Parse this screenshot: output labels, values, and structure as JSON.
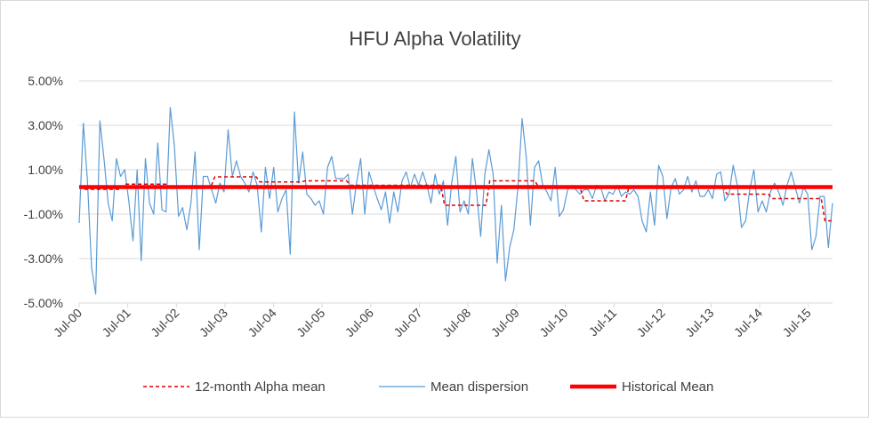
{
  "chart_data": {
    "type": "line",
    "title": "HFU Alpha Volatility",
    "xlabel": "",
    "ylabel": "",
    "ylim": [
      -0.05,
      0.05
    ],
    "y_ticks": [
      -0.05,
      -0.03,
      -0.01,
      0.01,
      0.03,
      0.05
    ],
    "y_tick_labels": [
      "-5.00%",
      "-3.00%",
      "-1.00%",
      "1.00%",
      "3.00%",
      "5.00%"
    ],
    "x_tick_labels": [
      "Jul-00",
      "Jul-01",
      "Jul-02",
      "Jul-03",
      "Jul-04",
      "Jul-05",
      "Jul-06",
      "Jul-07",
      "Jul-08",
      "Jul-09",
      "Jul-10",
      "Jul-11",
      "Jul-12",
      "Jul-13",
      "Jul-14",
      "Jul-15"
    ],
    "x_start": "Jul-00",
    "x_end": "Jan-16",
    "grid": "horizontal",
    "legend_position": "bottom",
    "series": [
      {
        "name": "12-month Alpha mean",
        "style": "dashed",
        "color": "#e00000",
        "values": [
          0.0025,
          0.0012,
          0.0012,
          0.0012,
          0.0012,
          0.0012,
          0.0012,
          0.0012,
          0.0012,
          0.0012,
          0.0012,
          0.0012,
          0.0035,
          0.0035,
          0.0035,
          0.0035,
          0.0035,
          0.0035,
          0.0035,
          0.0035,
          0.0035,
          0.0035,
          0.0035,
          0.0035,
          0.0025,
          0.0025,
          0.0025,
          0.0025,
          0.0025,
          0.0025,
          0.0025,
          0.0025,
          0.0025,
          0.0025,
          0.0025,
          0.0025,
          0.0068,
          0.0068,
          0.0068,
          0.0068,
          0.0068,
          0.0068,
          0.0068,
          0.0068,
          0.0068,
          0.0068,
          0.0068,
          0.0068,
          0.0045,
          0.0045,
          0.0045,
          0.0045,
          0.0045,
          0.0045,
          0.0045,
          0.0045,
          0.0045,
          0.0045,
          0.0045,
          0.0045,
          0.005,
          0.005,
          0.005,
          0.005,
          0.005,
          0.005,
          0.005,
          0.005,
          0.005,
          0.005,
          0.005,
          0.005,
          0.003,
          0.003,
          0.003,
          0.003,
          0.003,
          0.003,
          0.003,
          0.003,
          0.003,
          0.003,
          0.003,
          0.003,
          0.003,
          0.003,
          0.003,
          0.003,
          0.003,
          0.003,
          0.003,
          0.003,
          0.003,
          0.003,
          0.003,
          0.003,
          0.003,
          -0.006,
          -0.006,
          -0.006,
          -0.006,
          -0.006,
          -0.006,
          -0.006,
          -0.006,
          -0.006,
          -0.006,
          -0.006,
          -0.006,
          0.005,
          0.005,
          0.005,
          0.005,
          0.005,
          0.005,
          0.005,
          0.005,
          0.005,
          0.005,
          0.005,
          0.005,
          0.005,
          0.002,
          0.002,
          0.002,
          0.002,
          0.002,
          0.002,
          0.002,
          0.002,
          0.002,
          0.002,
          0.002,
          0.002,
          -0.004,
          -0.004,
          -0.004,
          -0.004,
          -0.004,
          -0.004,
          -0.004,
          -0.004,
          -0.004,
          -0.004,
          -0.004,
          -0.004,
          0.0025,
          0.0025,
          0.0025,
          0.0025,
          0.0025,
          0.0025,
          0.0025,
          0.0025,
          0.0025,
          0.0025,
          0.0025,
          0.0025,
          0.0025,
          0.0025,
          0.0025,
          0.0025,
          0.0025,
          0.0025,
          0.0025,
          0.0025,
          0.0025,
          0.0025,
          0.0025,
          0.0025,
          0.0025,
          0.0025,
          -0.001,
          -0.001,
          -0.001,
          -0.001,
          -0.001,
          -0.001,
          -0.001,
          -0.001,
          -0.001,
          -0.001,
          -0.001,
          -0.001,
          -0.003,
          -0.003,
          -0.003,
          -0.003,
          -0.003,
          -0.003,
          -0.003,
          -0.003,
          -0.003,
          -0.003,
          -0.003,
          -0.003,
          -0.003,
          -0.003,
          -0.013,
          -0.013,
          -0.013
        ]
      },
      {
        "name": "Mean dispersion",
        "style": "solid",
        "color": "#5b9bd5",
        "values": [
          -0.014,
          0.031,
          0.005,
          -0.034,
          -0.046,
          0.032,
          0.015,
          -0.005,
          -0.013,
          0.015,
          0.007,
          0.01,
          -0.004,
          -0.022,
          0.01,
          -0.031,
          0.015,
          -0.005,
          -0.01,
          0.022,
          -0.008,
          -0.009,
          0.038,
          0.021,
          -0.011,
          -0.007,
          -0.017,
          -0.005,
          0.018,
          -0.026,
          0.007,
          0.007,
          0.001,
          -0.005,
          0.004,
          0.0,
          0.028,
          0.007,
          0.014,
          0.007,
          0.004,
          0.0,
          0.009,
          0.003,
          -0.018,
          0.011,
          -0.003,
          0.011,
          -0.009,
          -0.003,
          0.001,
          -0.028,
          0.036,
          0.004,
          0.018,
          -0.001,
          -0.003,
          -0.006,
          -0.004,
          -0.01,
          0.011,
          0.016,
          0.006,
          0.006,
          0.006,
          0.008,
          -0.01,
          0.004,
          0.015,
          -0.01,
          0.009,
          0.003,
          -0.003,
          -0.008,
          0.0,
          -0.014,
          0.0,
          -0.009,
          0.005,
          0.009,
          0.002,
          0.008,
          0.003,
          0.009,
          0.003,
          -0.005,
          0.008,
          -0.001,
          0.005,
          -0.015,
          0.004,
          0.016,
          -0.009,
          -0.004,
          -0.01,
          0.015,
          0.0,
          -0.02,
          0.008,
          0.019,
          0.008,
          -0.032,
          -0.006,
          -0.04,
          -0.025,
          -0.017,
          0.002,
          0.033,
          0.016,
          -0.015,
          0.011,
          0.014,
          0.003,
          0.0,
          -0.004,
          0.011,
          -0.011,
          -0.008,
          0.001,
          0.003,
          0.001,
          -0.001,
          0.001,
          0.001,
          -0.003,
          0.003,
          0.002,
          -0.004,
          0.0,
          -0.001,
          0.003,
          -0.002,
          0.0,
          -0.001,
          0.001,
          -0.002,
          -0.013,
          -0.018,
          0.0,
          -0.015,
          0.012,
          0.007,
          -0.012,
          0.002,
          0.006,
          -0.001,
          0.001,
          0.007,
          0.0,
          0.005,
          -0.002,
          -0.002,
          0.001,
          -0.003,
          0.008,
          0.009,
          -0.004,
          -0.001,
          0.012,
          0.003,
          -0.016,
          -0.013,
          0.001,
          0.01,
          -0.009,
          -0.004,
          -0.009,
          0.0,
          0.004,
          0.0,
          -0.006,
          0.003,
          0.009,
          0.002,
          -0.005,
          0.002,
          -0.001,
          -0.026,
          -0.02,
          -0.002,
          -0.002,
          -0.025,
          -0.005
        ]
      },
      {
        "name": "Historical Mean",
        "style": "solid-thick",
        "color": "#ff0000",
        "values": [
          0.0022
        ]
      }
    ]
  }
}
